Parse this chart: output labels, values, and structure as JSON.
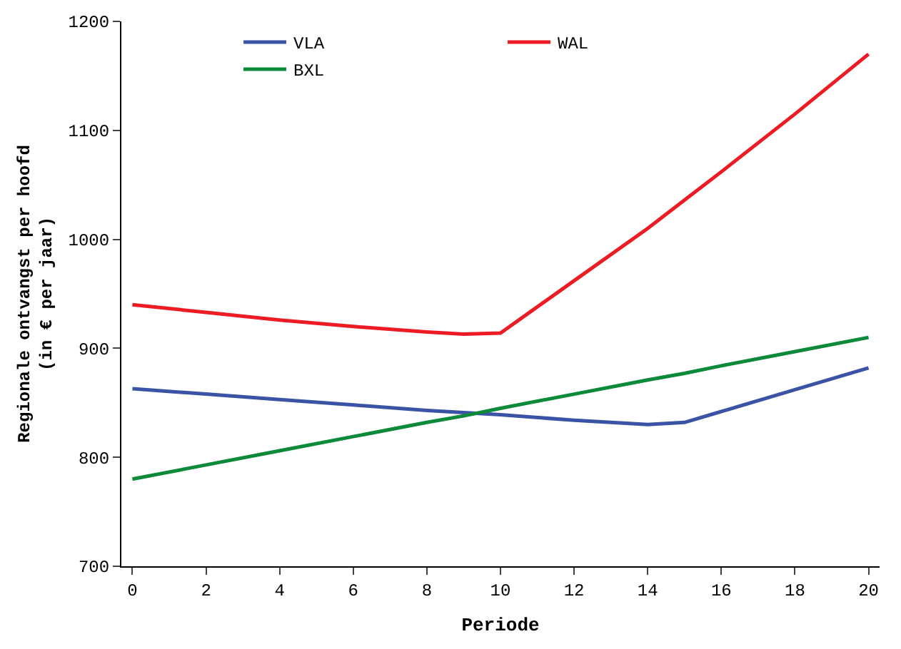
{
  "chart_data": {
    "type": "line",
    "xlabel": "Periode",
    "ylabel": "Regionale ontvangst per hoofd (in € per jaar)",
    "x": [
      0,
      2,
      4,
      6,
      8,
      9,
      10,
      12,
      14,
      15,
      16,
      18,
      20
    ],
    "series": [
      {
        "name": "VLA",
        "color": "#3a53a4",
        "values": [
          863,
          858,
          853,
          848,
          843,
          841,
          839,
          834,
          830,
          832,
          842,
          862,
          882
        ]
      },
      {
        "name": "WAL",
        "color": "#ed1c24",
        "values": [
          940,
          933,
          926,
          920,
          915,
          913,
          914,
          962,
          1010,
          1036,
          1062,
          1115,
          1170
        ]
      },
      {
        "name": "BXL",
        "color": "#0c8a3a",
        "values": [
          780,
          793,
          806,
          819,
          832,
          838,
          845,
          858,
          871,
          877,
          884,
          897,
          910
        ]
      }
    ],
    "xlim": [
      -0.3,
      20.3
    ],
    "xticks": [
      0,
      2,
      4,
      6,
      8,
      10,
      12,
      14,
      16,
      18,
      20
    ],
    "ylim": [
      700,
      1200
    ],
    "yticks": [
      700,
      800,
      900,
      1000,
      1100,
      1200
    ],
    "grid": false,
    "legend": "top",
    "marker": "none",
    "line_style": "solid"
  }
}
